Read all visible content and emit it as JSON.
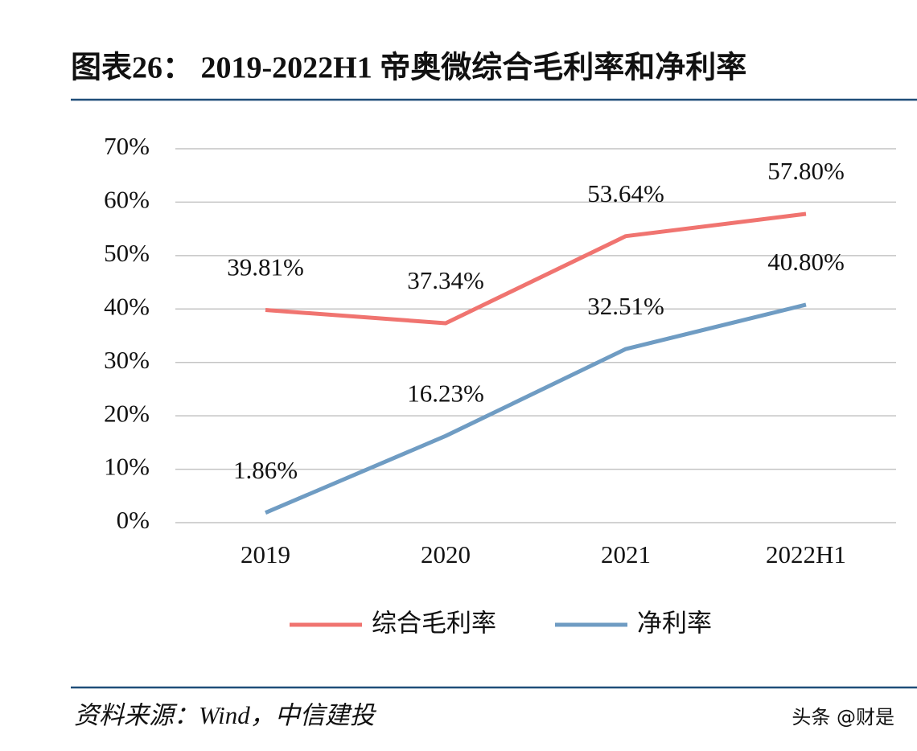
{
  "chart_data": {
    "type": "line",
    "title": "图表26：  2019-2022H1 帝奥微综合毛利率和净利率",
    "categories": [
      "2019",
      "2020",
      "2021",
      "2022H1"
    ],
    "series": [
      {
        "name": "综合毛利率",
        "color": "#f07470",
        "values": [
          39.81,
          37.34,
          53.64,
          57.8
        ],
        "value_labels": [
          "39.81%",
          "37.34%",
          "53.64%",
          "57.80%"
        ]
      },
      {
        "name": "净利率",
        "color": "#6f9cc3",
        "values": [
          1.86,
          16.23,
          32.51,
          40.8
        ],
        "value_labels": [
          "1.86%",
          "16.23%",
          "32.51%",
          "40.80%"
        ]
      }
    ],
    "ylim": [
      0,
      70
    ],
    "yticks": [
      {
        "value": 0,
        "label": "0%"
      },
      {
        "value": 10,
        "label": "10%"
      },
      {
        "value": 20,
        "label": "20%"
      },
      {
        "value": 30,
        "label": "30%"
      },
      {
        "value": 40,
        "label": "40%"
      },
      {
        "value": 50,
        "label": "50%"
      },
      {
        "value": 60,
        "label": "60%"
      },
      {
        "value": 70,
        "label": "70%"
      }
    ],
    "grid": true,
    "legend": "bottom"
  },
  "source": "资料来源：Wind，中信建投",
  "watermark": "头条 @财是"
}
